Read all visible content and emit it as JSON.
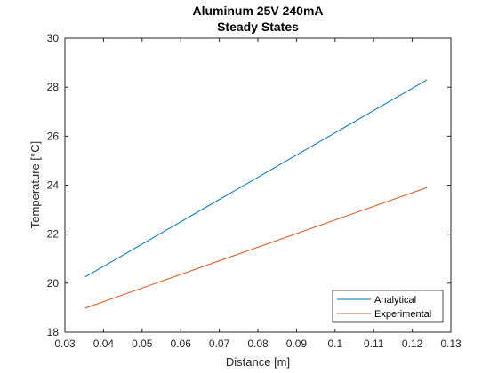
{
  "chart_data": {
    "type": "line",
    "title": [
      "Aluminum 25V 240mA",
      "Steady States"
    ],
    "xlabel": "Distance [m]",
    "ylabel": "Temperature [°C]",
    "xlim": [
      0.03,
      0.13
    ],
    "ylim": [
      18,
      30
    ],
    "xticks": [
      "0.03",
      "0.04",
      "0.05",
      "0.06",
      "0.07",
      "0.08",
      "0.09",
      "0.1",
      "0.11",
      "0.12",
      "0.13"
    ],
    "yticks": [
      "18",
      "20",
      "22",
      "24",
      "26",
      "28",
      "30"
    ],
    "grid": false,
    "legend_position": "bottom-right",
    "series": [
      {
        "name": "Analytical",
        "color": "#0072BD",
        "x": [
          0.0352,
          0.1238
        ],
        "y": [
          20.25,
          28.3
        ]
      },
      {
        "name": "Experimental",
        "color": "#D95319",
        "x": [
          0.0352,
          0.1238
        ],
        "y": [
          18.98,
          23.9
        ]
      }
    ]
  }
}
